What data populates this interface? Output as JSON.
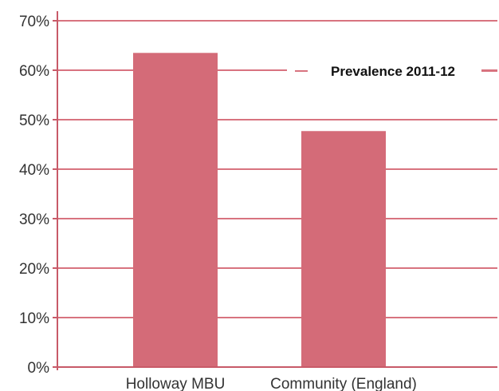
{
  "chart_data": {
    "type": "bar",
    "title": "",
    "xlabel": "",
    "ylabel": "",
    "categories": [
      "Holloway MBU",
      "Community (England)"
    ],
    "series": [
      {
        "name": "Prevalence 2011-12",
        "values": [
          63.5,
          47.7
        ]
      }
    ],
    "ylim": [
      0,
      70
    ],
    "yticks": [
      0,
      10,
      20,
      30,
      40,
      50,
      60,
      70
    ],
    "ytick_labels": [
      "0%",
      "10%",
      "20%",
      "30%",
      "40%",
      "50%",
      "60%",
      "70%"
    ],
    "grid": true,
    "legend_position": "top-right",
    "colors": {
      "bar": "#d46b78",
      "grid": "#d8737f",
      "axis": "#c85a68",
      "legend_line": "#d8737f"
    }
  }
}
